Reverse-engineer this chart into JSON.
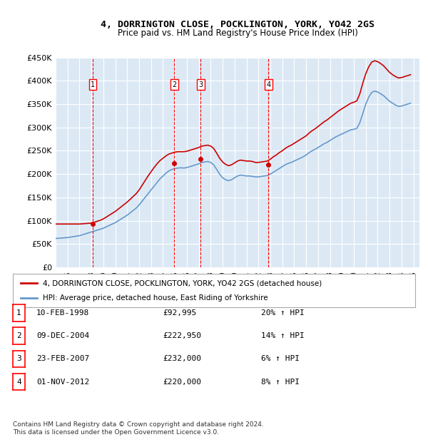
{
  "title": "4, DORRINGTON CLOSE, POCKLINGTON, YORK, YO42 2GS",
  "subtitle": "Price paid vs. HM Land Registry's House Price Index (HPI)",
  "ylabel": "",
  "ylim": [
    0,
    450000
  ],
  "yticks": [
    0,
    50000,
    100000,
    150000,
    200000,
    250000,
    300000,
    350000,
    400000,
    450000
  ],
  "xlim_start": 1995.0,
  "xlim_end": 2025.5,
  "background_color": "#dce9f5",
  "plot_bg_color": "#dce9f5",
  "grid_color": "#ffffff",
  "red_line_color": "#cc0000",
  "blue_line_color": "#6699cc",
  "sale_dates": [
    1998.11,
    2004.94,
    2007.15,
    2012.84
  ],
  "sale_prices": [
    92995,
    222950,
    232000,
    220000
  ],
  "sale_labels": [
    "1",
    "2",
    "3",
    "4"
  ],
  "legend_red": "4, DORRINGTON CLOSE, POCKLINGTON, YORK, YO42 2GS (detached house)",
  "legend_blue": "HPI: Average price, detached house, East Riding of Yorkshire",
  "table_data": [
    [
      "1",
      "10-FEB-1998",
      "£92,995",
      "20% ↑ HPI"
    ],
    [
      "2",
      "09-DEC-2004",
      "£222,950",
      "14% ↑ HPI"
    ],
    [
      "3",
      "23-FEB-2007",
      "£232,000",
      "6% ↑ HPI"
    ],
    [
      "4",
      "01-NOV-2012",
      "£220,000",
      "8% ↑ HPI"
    ]
  ],
  "footer": "Contains HM Land Registry data © Crown copyright and database right 2024.\nThis data is licensed under the Open Government Licence v3.0.",
  "hpi_years": [
    1995.0,
    1995.25,
    1995.5,
    1995.75,
    1996.0,
    1996.25,
    1996.5,
    1996.75,
    1997.0,
    1997.25,
    1997.5,
    1997.75,
    1998.0,
    1998.25,
    1998.5,
    1998.75,
    1999.0,
    1999.25,
    1999.5,
    1999.75,
    2000.0,
    2000.25,
    2000.5,
    2000.75,
    2001.0,
    2001.25,
    2001.5,
    2001.75,
    2002.0,
    2002.25,
    2002.5,
    2002.75,
    2003.0,
    2003.25,
    2003.5,
    2003.75,
    2004.0,
    2004.25,
    2004.5,
    2004.75,
    2005.0,
    2005.25,
    2005.5,
    2005.75,
    2006.0,
    2006.25,
    2006.5,
    2006.75,
    2007.0,
    2007.25,
    2007.5,
    2007.75,
    2008.0,
    2008.25,
    2008.5,
    2008.75,
    2009.0,
    2009.25,
    2009.5,
    2009.75,
    2010.0,
    2010.25,
    2010.5,
    2010.75,
    2011.0,
    2011.25,
    2011.5,
    2011.75,
    2012.0,
    2012.25,
    2012.5,
    2012.75,
    2013.0,
    2013.25,
    2013.5,
    2013.75,
    2014.0,
    2014.25,
    2014.5,
    2014.75,
    2015.0,
    2015.25,
    2015.5,
    2015.75,
    2016.0,
    2016.25,
    2016.5,
    2016.75,
    2017.0,
    2017.25,
    2017.5,
    2017.75,
    2018.0,
    2018.25,
    2018.5,
    2018.75,
    2019.0,
    2019.25,
    2019.5,
    2019.75,
    2020.0,
    2020.25,
    2020.5,
    2020.75,
    2021.0,
    2021.25,
    2021.5,
    2021.75,
    2022.0,
    2022.25,
    2022.5,
    2022.75,
    2023.0,
    2023.25,
    2023.5,
    2023.75,
    2024.0,
    2024.25,
    2024.5,
    2024.75
  ],
  "hpi_values": [
    62000,
    62500,
    63000,
    63500,
    64000,
    65000,
    66000,
    67000,
    68000,
    70000,
    72000,
    74000,
    76000,
    78000,
    80000,
    82000,
    84000,
    87000,
    90000,
    93000,
    96000,
    100000,
    104000,
    108000,
    112000,
    117000,
    122000,
    127000,
    134000,
    142000,
    150000,
    158000,
    166000,
    174000,
    182000,
    190000,
    196000,
    202000,
    207000,
    210000,
    212000,
    213000,
    213500,
    213000,
    214000,
    216000,
    218000,
    220000,
    222000,
    225000,
    226000,
    227000,
    225000,
    220000,
    210000,
    200000,
    192000,
    188000,
    186000,
    188000,
    192000,
    196000,
    198000,
    197000,
    196000,
    196000,
    195000,
    194000,
    194000,
    195000,
    196000,
    197000,
    200000,
    204000,
    208000,
    212000,
    216000,
    220000,
    223000,
    225000,
    228000,
    231000,
    234000,
    237000,
    241000,
    246000,
    250000,
    253000,
    257000,
    261000,
    265000,
    268000,
    272000,
    276000,
    280000,
    283000,
    286000,
    289000,
    292000,
    295000,
    296000,
    298000,
    310000,
    330000,
    350000,
    365000,
    375000,
    378000,
    376000,
    372000,
    368000,
    362000,
    356000,
    352000,
    348000,
    345000,
    346000,
    348000,
    350000,
    352000
  ],
  "red_hpi_years": [
    1995.0,
    1995.25,
    1995.5,
    1995.75,
    1996.0,
    1996.25,
    1996.5,
    1996.75,
    1997.0,
    1997.25,
    1997.5,
    1997.75,
    1998.0,
    1998.25,
    1998.5,
    1998.75,
    1999.0,
    1999.25,
    1999.5,
    1999.75,
    2000.0,
    2000.25,
    2000.5,
    2000.75,
    2001.0,
    2001.25,
    2001.5,
    2001.75,
    2002.0,
    2002.25,
    2002.5,
    2002.75,
    2003.0,
    2003.25,
    2003.5,
    2003.75,
    2004.0,
    2004.25,
    2004.5,
    2004.75,
    2005.0,
    2005.25,
    2005.5,
    2005.75,
    2006.0,
    2006.25,
    2006.5,
    2006.75,
    2007.0,
    2007.25,
    2007.5,
    2007.75,
    2008.0,
    2008.25,
    2008.5,
    2008.75,
    2009.0,
    2009.25,
    2009.5,
    2009.75,
    2010.0,
    2010.25,
    2010.5,
    2010.75,
    2011.0,
    2011.25,
    2011.5,
    2011.75,
    2012.0,
    2012.25,
    2012.5,
    2012.75,
    2013.0,
    2013.25,
    2013.5,
    2013.75,
    2014.0,
    2014.25,
    2014.5,
    2014.75,
    2015.0,
    2015.25,
    2015.5,
    2015.75,
    2016.0,
    2016.25,
    2016.5,
    2016.75,
    2017.0,
    2017.25,
    2017.5,
    2017.75,
    2018.0,
    2018.25,
    2018.5,
    2018.75,
    2019.0,
    2019.25,
    2019.5,
    2019.75,
    2020.0,
    2020.25,
    2020.5,
    2020.75,
    2021.0,
    2021.25,
    2021.5,
    2021.75,
    2022.0,
    2022.25,
    2022.5,
    2022.75,
    2023.0,
    2023.25,
    2023.5,
    2023.75,
    2024.0,
    2024.25,
    2024.5,
    2024.75
  ],
  "red_values": [
    92995,
    92995,
    92995,
    92995,
    92995,
    92995,
    92995,
    92995,
    92995,
    93500,
    94000,
    94500,
    95000,
    97000,
    99000,
    101000,
    104000,
    108000,
    112000,
    116000,
    120000,
    125000,
    130000,
    135000,
    140000,
    146000,
    152000,
    158000,
    166000,
    176000,
    186000,
    196000,
    205000,
    214000,
    222000,
    229000,
    234000,
    239000,
    243000,
    245000,
    247000,
    248000,
    248000,
    248000,
    249000,
    251000,
    253000,
    255000,
    257000,
    260000,
    261000,
    262000,
    260000,
    255000,
    245000,
    234000,
    226000,
    221000,
    218000,
    220000,
    224000,
    228000,
    230000,
    229000,
    228000,
    228000,
    227000,
    225000,
    225000,
    226000,
    227000,
    228000,
    232000,
    237000,
    241000,
    246000,
    250000,
    255000,
    259000,
    262000,
    266000,
    270000,
    274000,
    278000,
    282000,
    288000,
    293000,
    297000,
    302000,
    307000,
    312000,
    316000,
    321000,
    326000,
    331000,
    336000,
    340000,
    344000,
    348000,
    352000,
    354000,
    357000,
    372000,
    395000,
    415000,
    430000,
    440000,
    443000,
    441000,
    437000,
    432000,
    425000,
    418000,
    413000,
    409000,
    406000,
    407000,
    409000,
    411000,
    413000
  ]
}
